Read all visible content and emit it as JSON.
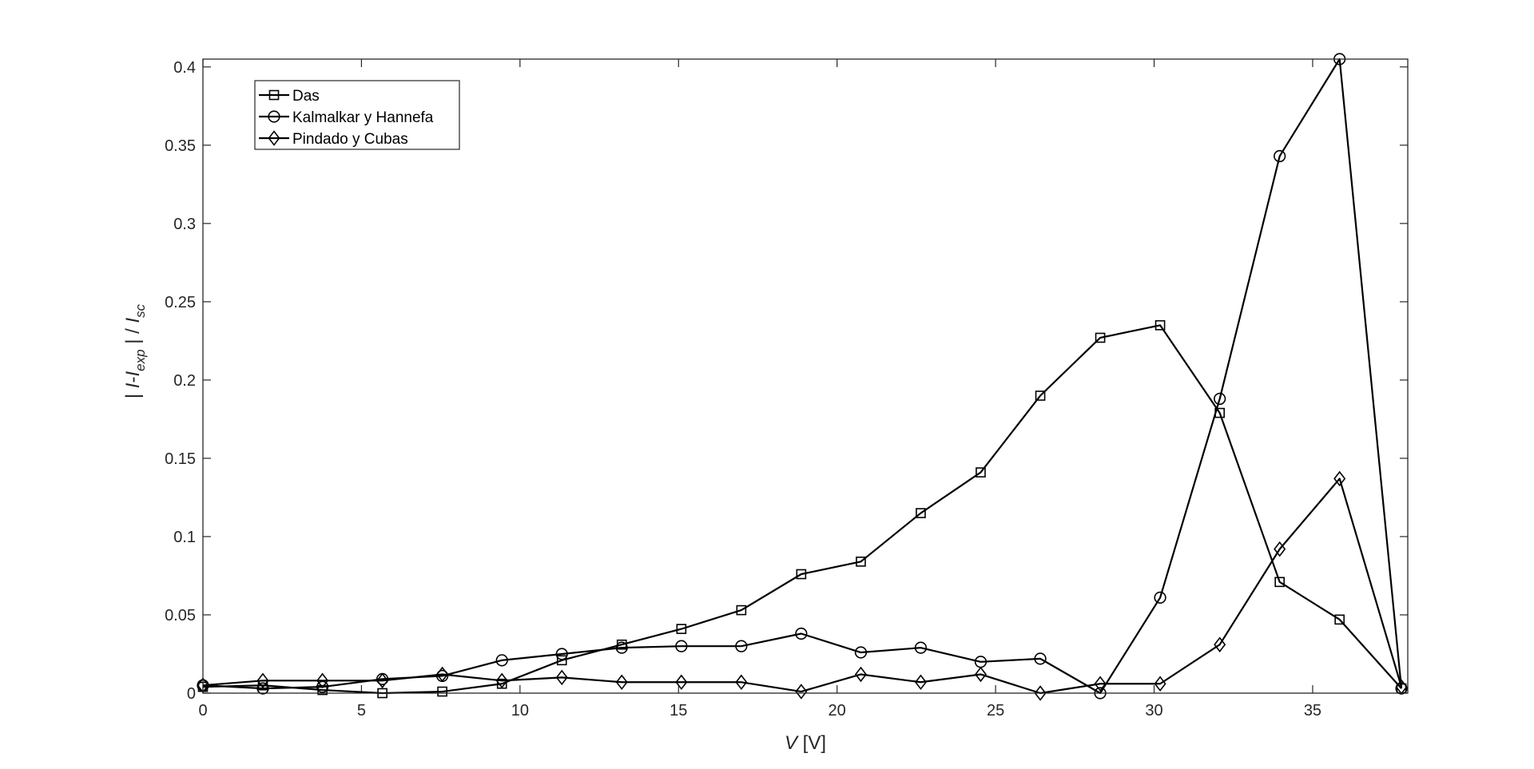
{
  "chart_data": {
    "type": "line",
    "title": "",
    "xlabel": {
      "var": "V",
      "unit": " [V]"
    },
    "ylabel": {
      "bar1": "| ",
      "I": "I",
      "dash": "-",
      "Iexp": "I",
      "exp": "exp",
      "bar2": " | / ",
      "Isc": "I",
      "sc": "sc"
    },
    "xlim": [
      0,
      38
    ],
    "ylim": [
      0,
      0.405
    ],
    "xticks": [
      0,
      5,
      10,
      15,
      20,
      25,
      30,
      35
    ],
    "yticks": [
      0,
      0.05,
      0.1,
      0.15,
      0.2,
      0.25,
      0.3,
      0.35,
      0.4
    ],
    "xtick_labels": [
      "0",
      "5",
      "10",
      "15",
      "20",
      "25",
      "30",
      "35"
    ],
    "ytick_labels": [
      "0",
      "0.05",
      "0.1",
      "0.15",
      "0.2",
      "0.25",
      "0.3",
      "0.35",
      "0.4"
    ],
    "grid": false,
    "legend_position": "top-left",
    "x": [
      0,
      1.89,
      3.77,
      5.66,
      7.55,
      9.43,
      11.32,
      13.21,
      15.09,
      16.98,
      18.87,
      20.75,
      22.64,
      24.53,
      26.41,
      28.3,
      30.19,
      32.07,
      33.96,
      35.85,
      37.8
    ],
    "series": [
      {
        "name": "Das",
        "marker": "square",
        "color": "#000000",
        "values": [
          0.004,
          0.005,
          0.002,
          0.0,
          0.001,
          0.006,
          0.021,
          0.031,
          0.041,
          0.053,
          0.076,
          0.084,
          0.115,
          0.141,
          0.19,
          0.227,
          0.235,
          0.179,
          0.071,
          0.047,
          0.003
        ]
      },
      {
        "name": "Kalmalkar y Hannefa",
        "marker": "circle",
        "color": "#000000",
        "values": [
          0.005,
          0.003,
          0.004,
          0.009,
          0.011,
          0.021,
          0.025,
          0.029,
          0.03,
          0.03,
          0.038,
          0.026,
          0.029,
          0.02,
          0.022,
          0.0,
          0.061,
          0.188,
          0.343,
          0.405,
          0.003
        ]
      },
      {
        "name": "Pindado y Cubas",
        "marker": "diamond",
        "color": "#000000",
        "values": [
          0.005,
          0.008,
          0.008,
          0.008,
          0.012,
          0.008,
          0.01,
          0.007,
          0.007,
          0.007,
          0.001,
          0.012,
          0.007,
          0.012,
          0.0,
          0.006,
          0.006,
          0.031,
          0.092,
          0.137,
          0.004
        ]
      }
    ]
  }
}
